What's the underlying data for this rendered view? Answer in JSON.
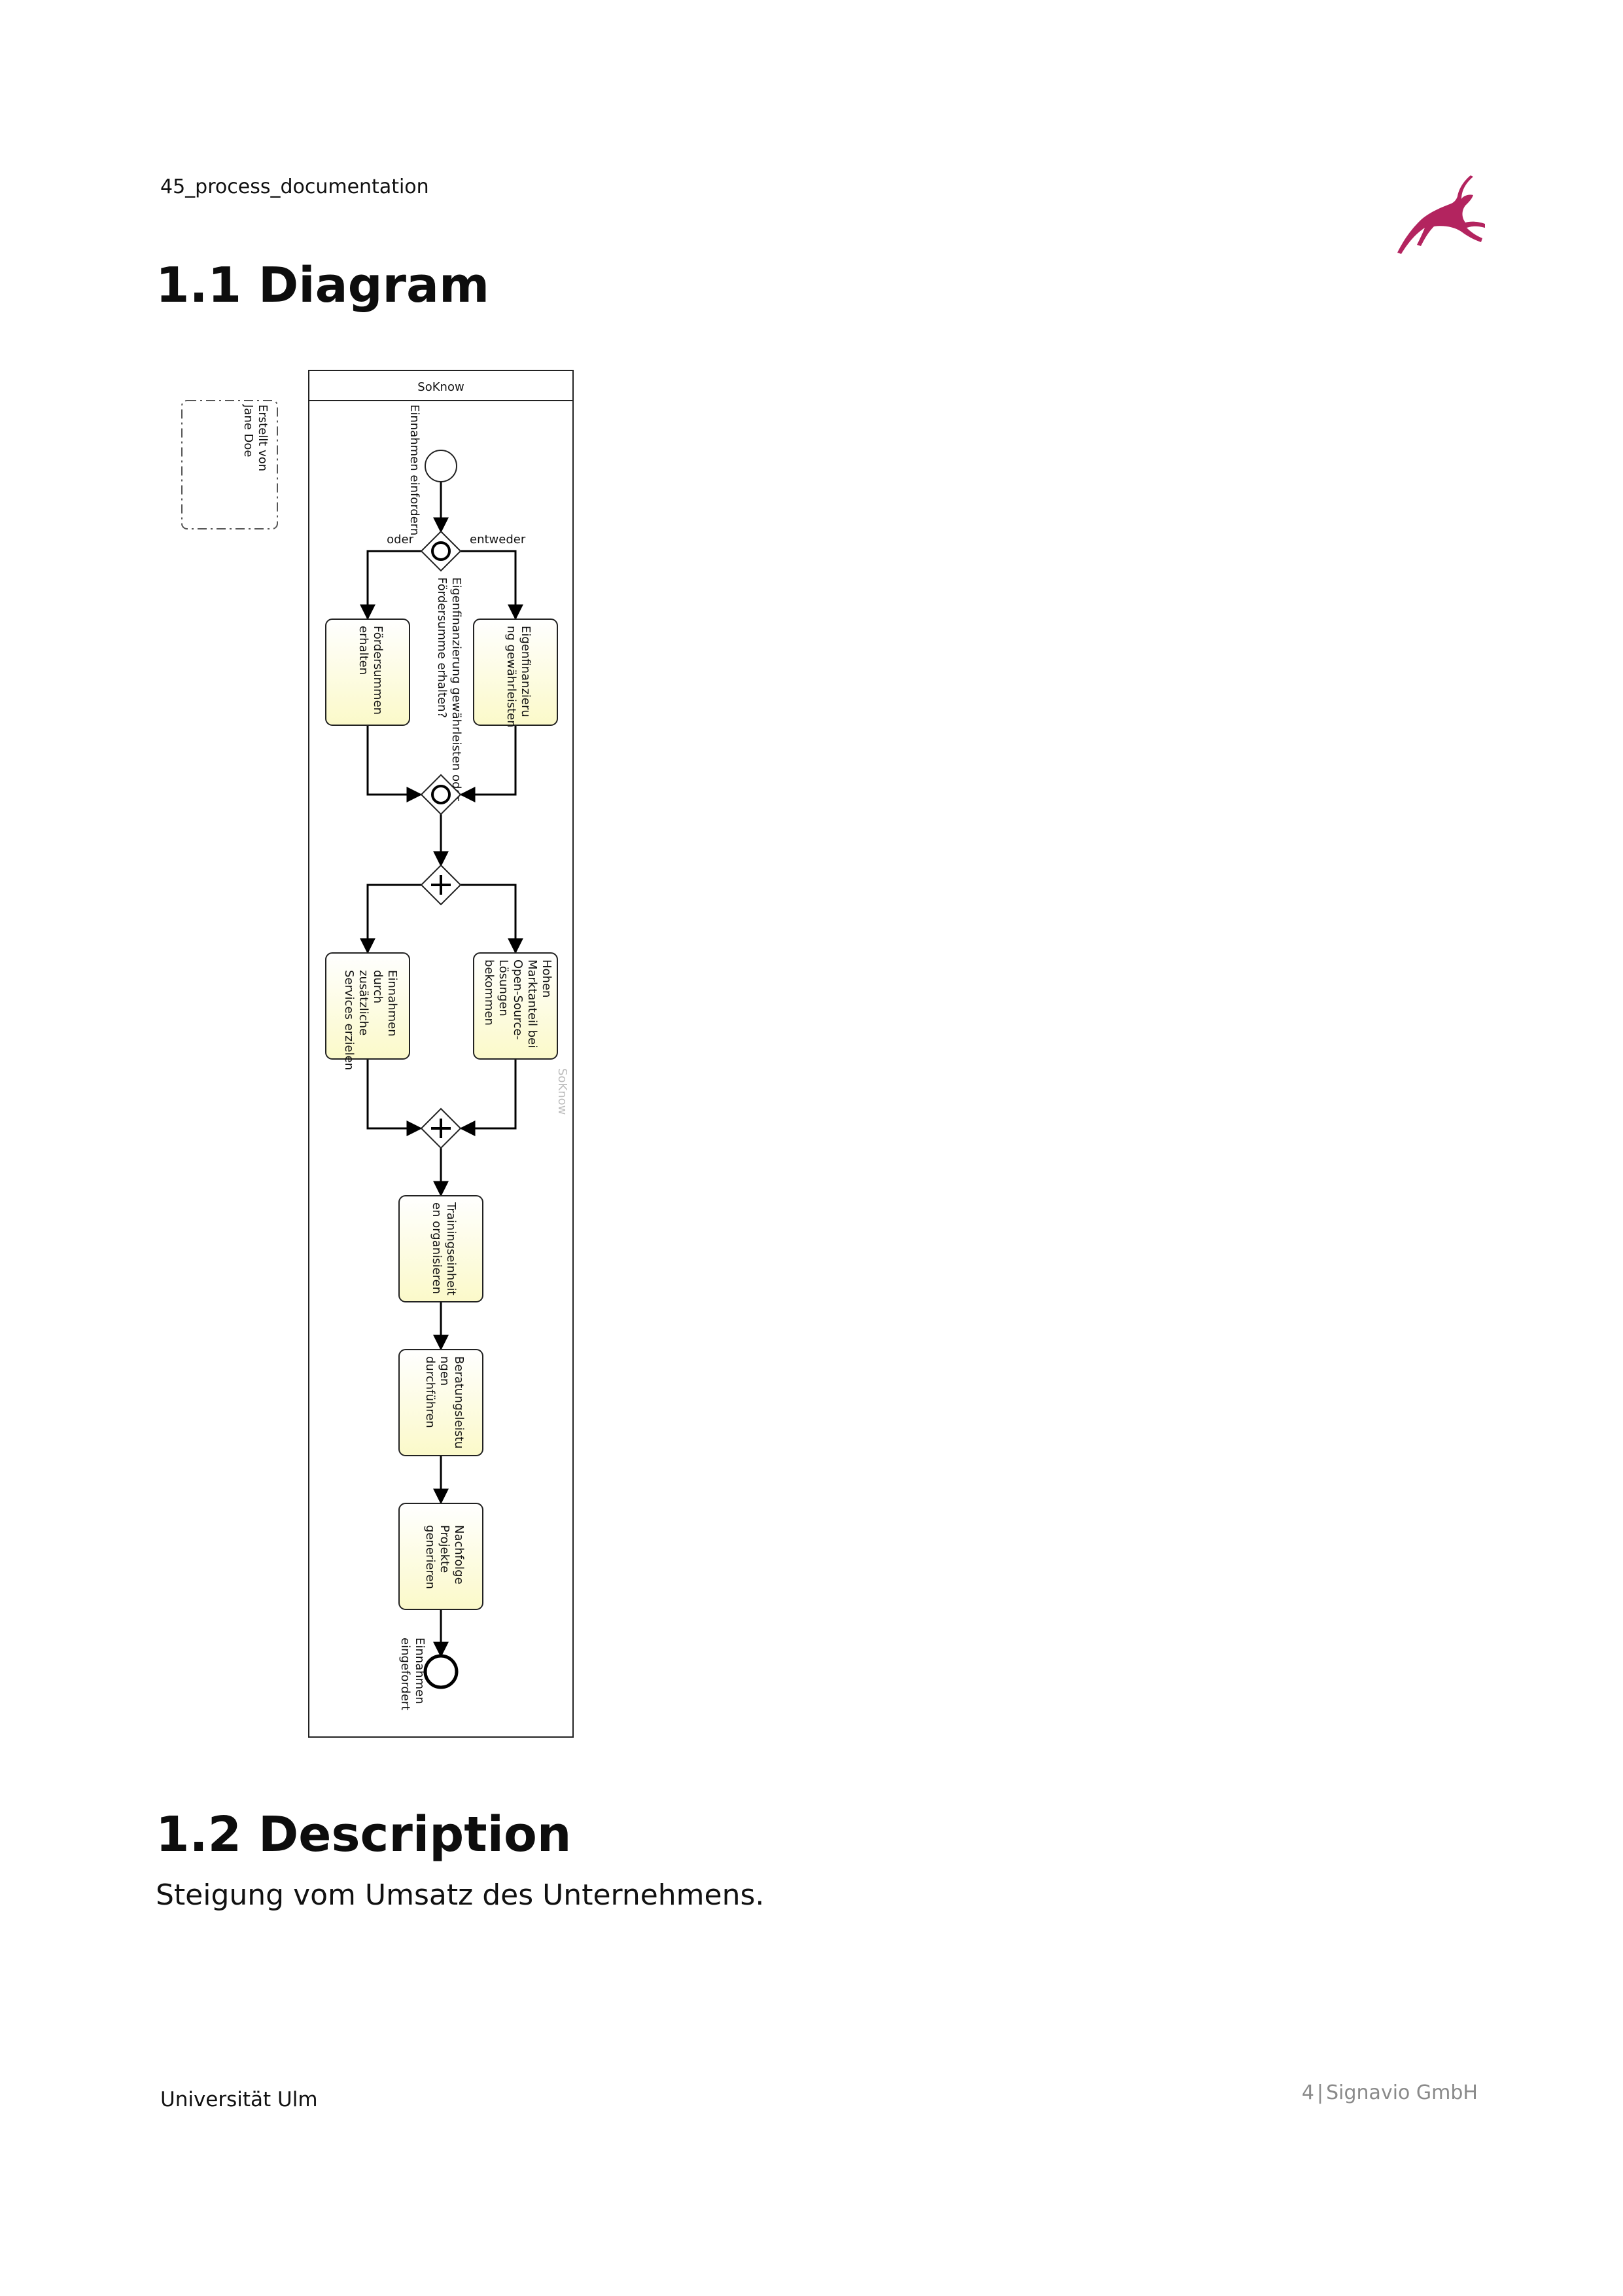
{
  "header": {
    "doc_name": "45_process_documentation"
  },
  "sections": {
    "diagram_title": "1.1 Diagram",
    "description_title": "1.2 Description"
  },
  "description": {
    "text": "Steigung vom Umsatz des Unternehmens."
  },
  "diagram": {
    "pool_name": "SoKnow",
    "pool_watermark": "SoKnow",
    "annotation": "Erstellt von\nJane Doe",
    "start_event_label": "Einnahmen einfordern",
    "end_event_label": "Einnahmen\neingefordert",
    "gateway_question": "Eigenfinanzierung gewährleisten oder\nFördersumme erhalten?",
    "flow_labels": {
      "left": "oder",
      "right": "entweder"
    },
    "tasks": {
      "foerder": "Fördersummen\nerhalten",
      "eigen": "Eigenfinanzieru\nng gewährleisten",
      "einnahmen": "Einnahmen\ndurch\nzusätzliche\nServices erzielen",
      "markt": "Hohen\nMarktanteil bei\nOpen-Source-\nLösungen\nbekommen",
      "training": "Trainingseinheit\nen organisieren",
      "beratung": "Beratungsleistu\nngen\ndurchführen",
      "nachfolge": "Nachfolge\nProjekte\ngenerieren"
    }
  },
  "footer": {
    "left": "Universität Ulm",
    "page": "4",
    "company": "Signavio GmbH"
  },
  "colors": {
    "task_fill_top": "#ffffff",
    "task_fill_bottom": "#fbf9c9",
    "logo": "#b3245f"
  }
}
